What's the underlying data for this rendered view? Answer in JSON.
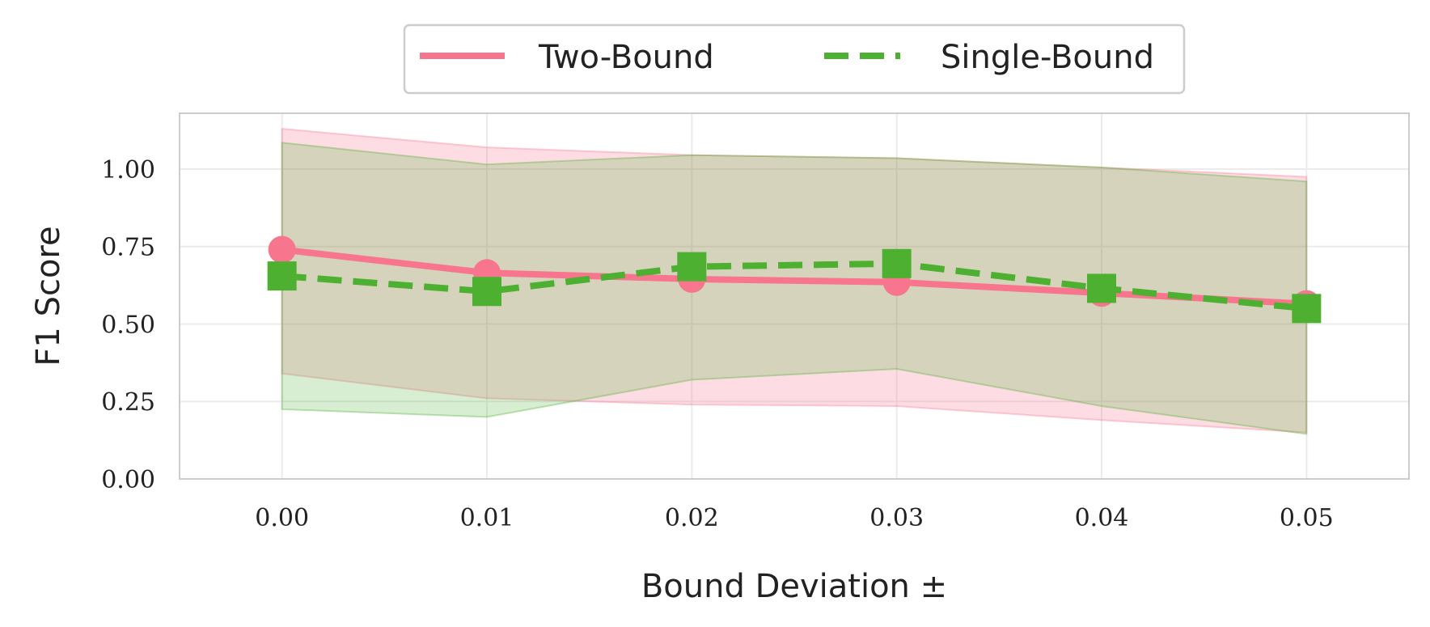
{
  "chart_data": {
    "type": "line",
    "x": [
      0.0,
      0.01,
      0.02,
      0.03,
      0.04,
      0.05
    ],
    "x_tick_labels": [
      "0.00",
      "0.01",
      "0.02",
      "0.03",
      "0.04",
      "0.05"
    ],
    "y_ticks": [
      0.0,
      0.25,
      0.5,
      0.75,
      1.0
    ],
    "y_tick_labels": [
      "0.00",
      "0.25",
      "0.50",
      "0.75",
      "1.00"
    ],
    "xlabel": "Bound Deviation ±",
    "ylabel": "F1 Score",
    "xlim": [
      -0.005,
      0.055
    ],
    "ylim": [
      0.0,
      1.18
    ],
    "grid": true,
    "legend_position": "top-center-outside",
    "series": [
      {
        "name": "Two-Bound",
        "color": "#f7768e",
        "line_style": "solid",
        "marker": "circle",
        "values": [
          0.74,
          0.665,
          0.645,
          0.635,
          0.6,
          0.565
        ],
        "band_lower": [
          0.34,
          0.26,
          0.24,
          0.235,
          0.19,
          0.15
        ],
        "band_upper": [
          1.13,
          1.07,
          1.045,
          1.035,
          1.005,
          0.975
        ]
      },
      {
        "name": "Single-Bound",
        "color": "#4eb030",
        "line_style": "dashed",
        "marker": "square",
        "values": [
          0.655,
          0.605,
          0.685,
          0.695,
          0.615,
          0.55
        ],
        "band_lower": [
          0.225,
          0.2,
          0.32,
          0.355,
          0.235,
          0.145
        ],
        "band_upper": [
          1.085,
          1.015,
          1.045,
          1.035,
          1.005,
          0.96
        ]
      }
    ]
  }
}
